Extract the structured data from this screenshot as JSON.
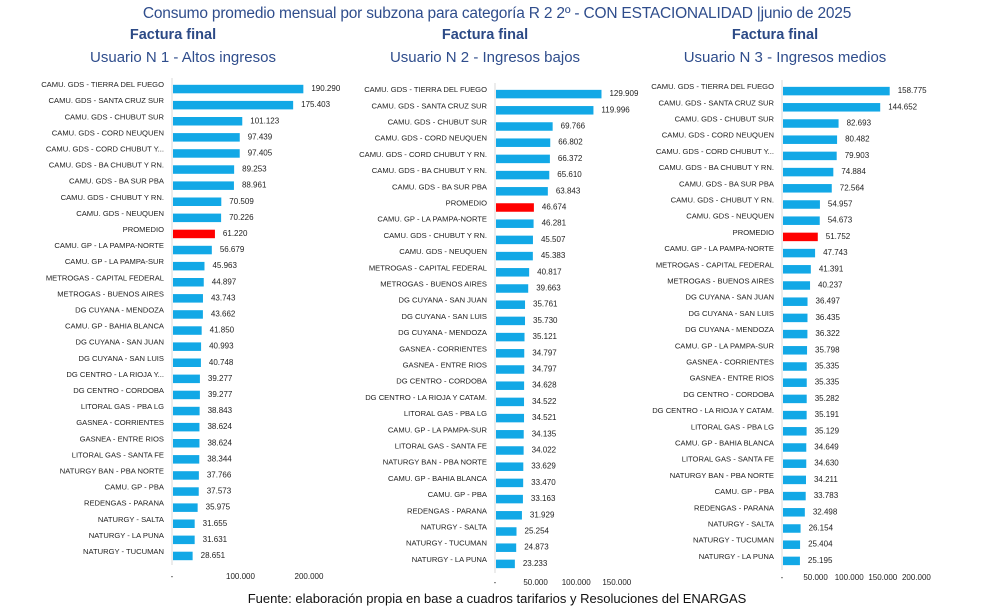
{
  "title": "Consumo promedio mensual por subzona para categoría R 2 2º - CON ESTACIONALIDAD |junio de 2025",
  "footer": "Fuente: elaboración propia en base a cuadros tarifarios y Resoluciones del ENARGAS",
  "colors": {
    "bar": "#12a8e6",
    "promedio": "#ff0000",
    "axis": "#d9d9d9",
    "title": "#2f4d8c"
  },
  "chart_data": [
    {
      "type": "bar",
      "orientation": "horizontal",
      "title": "Factura final",
      "subtitle": "Usuario N 1 - Altos ingresos",
      "xlim": [
        0,
        200000
      ],
      "xticks": [
        "-",
        "100.000",
        "200.000"
      ],
      "xtick_values": [
        0,
        100000,
        200000
      ],
      "grid": false,
      "highlight": "PROMEDIO",
      "categories": [
        "CAMU. GDS - TIERRA DEL FUEGO",
        "CAMU. GDS - SANTA CRUZ SUR",
        "CAMU. GDS - CHUBUT SUR",
        "CAMU. GDS - CORD NEUQUEN",
        "CAMU. GDS - CORD CHUBUT Y...",
        "CAMU. GDS - BA CHUBUT Y RN.",
        "CAMU. GDS - BA SUR PBA",
        "CAMU. GDS - CHUBUT Y RN.",
        "CAMU. GDS - NEUQUEN",
        "PROMEDIO",
        "CAMU. GP - LA PAMPA-NORTE",
        "CAMU. GP - LA PAMPA-SUR",
        "METROGAS - CAPITAL FEDERAL",
        "METROGAS - BUENOS AIRES",
        "DG CUYANA - MENDOZA",
        "CAMU. GP - BAHIA BLANCA",
        "DG CUYANA - SAN JUAN",
        "DG CUYANA - SAN LUIS",
        "DG CENTRO - LA RIOJA Y...",
        "DG CENTRO - CORDOBA",
        "LITORAL GAS - PBA LG",
        "GASNEA - CORRIENTES",
        "GASNEA - ENTRE RIOS",
        "LITORAL GAS - SANTA FE",
        "NATURGY BAN - PBA NORTE",
        "CAMU. GP - PBA",
        "REDENGAS - PARANA",
        "NATURGY - SALTA",
        "NATURGY - LA PUNA",
        "NATURGY - TUCUMAN"
      ],
      "values": [
        190290,
        175403,
        101123,
        97439,
        97405,
        89253,
        88961,
        70509,
        70226,
        61220,
        56679,
        45963,
        44897,
        43743,
        43662,
        41850,
        40993,
        40748,
        39277,
        39277,
        38843,
        38624,
        38624,
        38344,
        37766,
        37573,
        35975,
        31655,
        31631,
        28651
      ],
      "labels": [
        "190.290",
        "175.403",
        "101.123",
        "97.439",
        "97.405",
        "89.253",
        "88.961",
        "70.509",
        "70.226",
        "61.220",
        "56.679",
        "45.963",
        "44.897",
        "43.743",
        "43.662",
        "41.850",
        "40.993",
        "40.748",
        "39.277",
        "39.277",
        "38.843",
        "38.624",
        "38.624",
        "38.344",
        "37.766",
        "37.573",
        "35.975",
        "31.655",
        "31.631",
        "28.651"
      ]
    },
    {
      "type": "bar",
      "orientation": "horizontal",
      "title": "Factura final",
      "subtitle": "Usuario N 2 - Ingresos bajos",
      "xlim": [
        0,
        150000
      ],
      "xticks": [
        "-",
        "50.000",
        "100.000",
        "150.000"
      ],
      "xtick_values": [
        0,
        50000,
        100000,
        150000
      ],
      "grid": false,
      "highlight": "PROMEDIO",
      "categories": [
        "CAMU. GDS - TIERRA DEL FUEGO",
        "CAMU. GDS - SANTA CRUZ SUR",
        "CAMU. GDS - CHUBUT SUR",
        "CAMU. GDS - CORD NEUQUEN",
        "CAMU. GDS - CORD CHUBUT Y RN.",
        "CAMU. GDS - BA CHUBUT Y RN.",
        "CAMU. GDS - BA SUR PBA",
        "PROMEDIO",
        "CAMU. GP - LA PAMPA-NORTE",
        "CAMU. GDS - CHUBUT Y RN.",
        "CAMU. GDS - NEUQUEN",
        "METROGAS - CAPITAL FEDERAL",
        "METROGAS - BUENOS AIRES",
        "DG CUYANA - SAN JUAN",
        "DG CUYANA - SAN LUIS",
        "DG CUYANA - MENDOZA",
        "GASNEA - CORRIENTES",
        "GASNEA - ENTRE RIOS",
        "DG CENTRO - CORDOBA",
        "DG CENTRO - LA RIOJA Y CATAM.",
        "LITORAL GAS - PBA LG",
        "CAMU. GP - LA PAMPA-SUR",
        "LITORAL GAS - SANTA FE",
        "NATURGY BAN - PBA NORTE",
        "CAMU. GP - BAHIA BLANCA",
        "CAMU. GP - PBA",
        "REDENGAS - PARANA",
        "NATURGY - SALTA",
        "NATURGY - TUCUMAN",
        "NATURGY - LA PUNA"
      ],
      "values": [
        129909,
        119996,
        69766,
        66802,
        66372,
        65610,
        63843,
        46674,
        46281,
        45507,
        45383,
        40817,
        39663,
        35761,
        35730,
        35121,
        34797,
        34797,
        34628,
        34522,
        34521,
        34135,
        34022,
        33629,
        33470,
        33163,
        31929,
        25254,
        24873,
        23233
      ],
      "labels": [
        "129.909",
        "119.996",
        "69.766",
        "66.802",
        "66.372",
        "65.610",
        "63.843",
        "46.674",
        "46.281",
        "45.507",
        "45.383",
        "40.817",
        "39.663",
        "35.761",
        "35.730",
        "35.121",
        "34.797",
        "34.797",
        "34.628",
        "34.522",
        "34.521",
        "34.135",
        "34.022",
        "33.629",
        "33.470",
        "33.163",
        "31.929",
        "25.254",
        "24.873",
        "23.233"
      ]
    },
    {
      "type": "bar",
      "orientation": "horizontal",
      "title": "Factura final",
      "subtitle": "Usuario N 3 - Ingresos medios",
      "xlim": [
        0,
        200000
      ],
      "xticks": [
        "-",
        "50.000",
        "100.000",
        "150.000",
        "200.000"
      ],
      "xtick_values": [
        0,
        50000,
        100000,
        150000,
        200000
      ],
      "grid": false,
      "highlight": "PROMEDIO",
      "categories": [
        "CAMU. GDS - TIERRA DEL FUEGO",
        "CAMU. GDS - SANTA CRUZ SUR",
        "CAMU. GDS - CHUBUT SUR",
        "CAMU. GDS - CORD NEUQUEN",
        "CAMU. GDS - CORD CHUBUT Y...",
        "CAMU. GDS - BA CHUBUT Y RN.",
        "CAMU. GDS - BA SUR PBA",
        "CAMU. GDS - CHUBUT Y RN.",
        "CAMU. GDS - NEUQUEN",
        "PROMEDIO",
        "CAMU. GP - LA PAMPA-NORTE",
        "METROGAS - CAPITAL FEDERAL",
        "METROGAS - BUENOS AIRES",
        "DG CUYANA - SAN JUAN",
        "DG CUYANA - SAN LUIS",
        "DG CUYANA - MENDOZA",
        "CAMU. GP - LA PAMPA-SUR",
        "GASNEA - CORRIENTES",
        "GASNEA - ENTRE RIOS",
        "DG CENTRO - CORDOBA",
        "DG CENTRO - LA RIOJA Y CATAM.",
        "LITORAL GAS - PBA LG",
        "CAMU. GP - BAHIA BLANCA",
        "LITORAL GAS - SANTA FE",
        "NATURGY BAN - PBA NORTE",
        "CAMU. GP - PBA",
        "REDENGAS - PARANA",
        "NATURGY - SALTA",
        "NATURGY - TUCUMAN",
        "NATURGY - LA PUNA"
      ],
      "values": [
        158775,
        144652,
        82693,
        80482,
        79903,
        74884,
        72564,
        54957,
        54673,
        51752,
        47743,
        41391,
        40237,
        36497,
        36435,
        36322,
        35798,
        35335,
        35335,
        35282,
        35191,
        35129,
        34649,
        34630,
        34211,
        33783,
        32498,
        26154,
        25404,
        25195
      ],
      "labels": [
        "158.775",
        "144.652",
        "82.693",
        "80.482",
        "79.903",
        "74.884",
        "72.564",
        "54.957",
        "54.673",
        "51.752",
        "47.743",
        "41.391",
        "40.237",
        "36.497",
        "36.435",
        "36.322",
        "35.798",
        "35.335",
        "35.335",
        "35.282",
        "35.191",
        "35.129",
        "34.649",
        "34.630",
        "34.211",
        "33.783",
        "32.498",
        "26.154",
        "25.404",
        "25.195"
      ]
    }
  ]
}
